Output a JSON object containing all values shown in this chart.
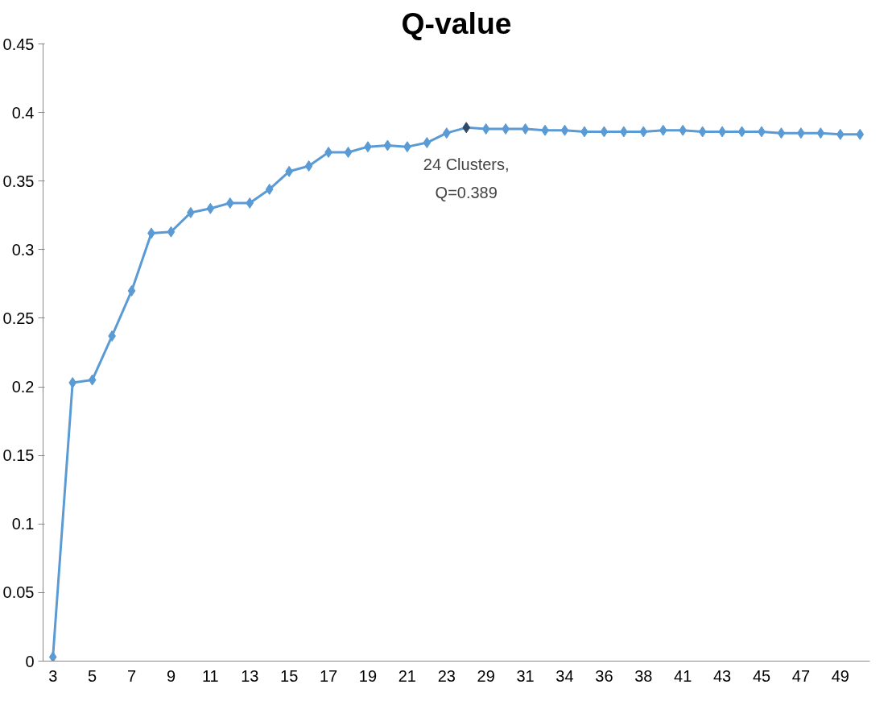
{
  "chart_data": {
    "type": "line",
    "title": "Q-value",
    "categories": [
      "3",
      null,
      "5",
      null,
      "7",
      null,
      "9",
      null,
      "11",
      null,
      "13",
      null,
      "15",
      null,
      "17",
      null,
      "19",
      null,
      "21",
      null,
      "23",
      null,
      "29",
      null,
      "31",
      null,
      "34",
      null,
      "36",
      null,
      "38",
      null,
      "41",
      null,
      "43",
      null,
      "45",
      null,
      "47",
      null,
      "49",
      null
    ],
    "series": [
      {
        "color": "#5b9bd5",
        "colors": [
          "#5b9bd5",
          "#5b9bd5",
          "#5b9bd5",
          "#5b9bd5",
          "#5b9bd5",
          "#5b9bd5",
          "#5b9bd5",
          "#5b9bd5",
          "#5b9bd5",
          "#5b9bd5",
          "#5b9bd5",
          "#5b9bd5",
          "#5b9bd5",
          "#5b9bd5",
          "#5b9bd5",
          "#5b9bd5",
          "#5b9bd5",
          "#5b9bd5",
          "#5b9bd5",
          "#5b9bd5",
          "#5b9bd5",
          "#2e4a6b",
          "#5b9bd5",
          "#5b9bd5",
          "#5b9bd5",
          "#5b9bd5",
          "#5b9bd5",
          "#5b9bd5",
          "#5b9bd5",
          "#5b9bd5",
          "#5b9bd5",
          "#5b9bd5",
          "#5b9bd5",
          "#5b9bd5",
          "#5b9bd5",
          "#5b9bd5",
          "#5b9bd5",
          "#5b9bd5",
          "#5b9bd5",
          "#5b9bd5",
          "#5b9bd5",
          "#5b9bd5"
        ],
        "values": [
          0.003,
          0.203,
          0.205,
          0.237,
          0.27,
          0.312,
          0.313,
          0.327,
          0.33,
          0.334,
          0.334,
          0.344,
          0.357,
          0.361,
          0.371,
          0.371,
          0.375,
          0.376,
          0.375,
          0.378,
          0.385,
          0.389,
          0.388,
          0.388,
          0.388,
          0.387,
          0.387,
          0.386,
          0.386,
          0.386,
          0.386,
          0.387,
          0.387,
          0.386,
          0.386,
          0.386,
          0.386,
          0.385,
          0.385,
          0.385,
          0.384,
          0.384
        ]
      }
    ],
    "ylim": [
      0,
      0.45
    ],
    "yticks": [
      0,
      0.05,
      0.1,
      0.15,
      0.2,
      0.25,
      0.3,
      0.35,
      0.4,
      0.45
    ],
    "annotations": [
      "24 Clusters,\nQ=0.389"
    ],
    "grid": false,
    "marker": "diamond",
    "line_style": "solid"
  }
}
